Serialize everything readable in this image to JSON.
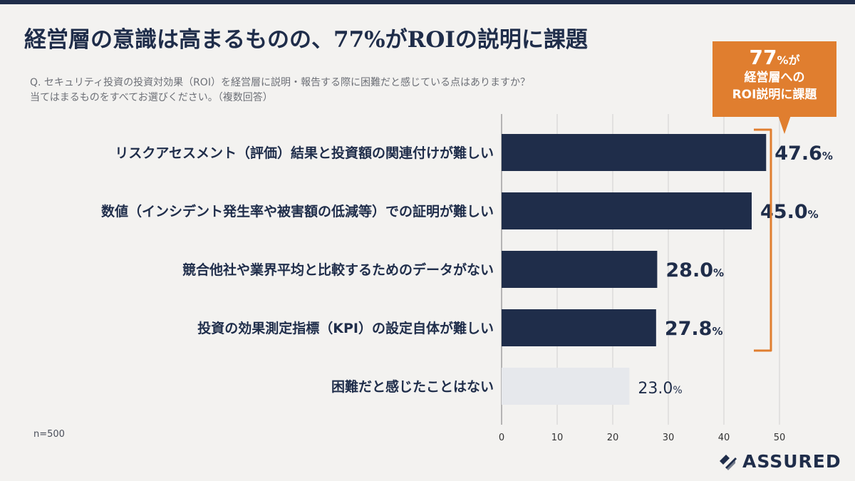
{
  "header": {
    "title": "経営層の意識は高まるものの、77%がROIの説明に課題",
    "question_line1": "Q. セキュリティ投資の投資対効果（ROI）を経営層に説明・報告する際に困難だと感じている点はありますか？",
    "question_line2": "当てはまるものをすべてお選びください。（複数回答）"
  },
  "callout": {
    "big": "77",
    "small": "%が",
    "line2": "経営層への",
    "line3": "ROI説明に課題"
  },
  "footer": {
    "n": "n=500",
    "brand": "ASSURED"
  },
  "colors": {
    "bar": "#1f2d4a",
    "bar_muted": "#e6e8ec",
    "accent": "#e07e2f",
    "grid": "#d0d0d0"
  },
  "chart_data": {
    "type": "bar",
    "orientation": "horizontal",
    "categories": [
      "リスクアセスメント（評価）結果と投資額の関連付けが難しい",
      "数値（インシデント発生率や被害額の低減等）での証明が難しい",
      "競合他社や業界平均と比較するためのデータがない",
      "投資の効果測定指標（KPI）の設定自体が難しい",
      "困難だと感じたことはない"
    ],
    "values": [
      47.6,
      45.0,
      28.0,
      27.8,
      23.0
    ],
    "value_labels": [
      "47.6",
      "45.0",
      "28.0",
      "27.8",
      "23.0"
    ],
    "unit": "%",
    "highlighted": [
      true,
      true,
      true,
      true,
      false
    ],
    "xlim": [
      0,
      50
    ],
    "xticks": [
      0,
      10,
      20,
      30,
      40,
      50
    ],
    "grid": true
  }
}
